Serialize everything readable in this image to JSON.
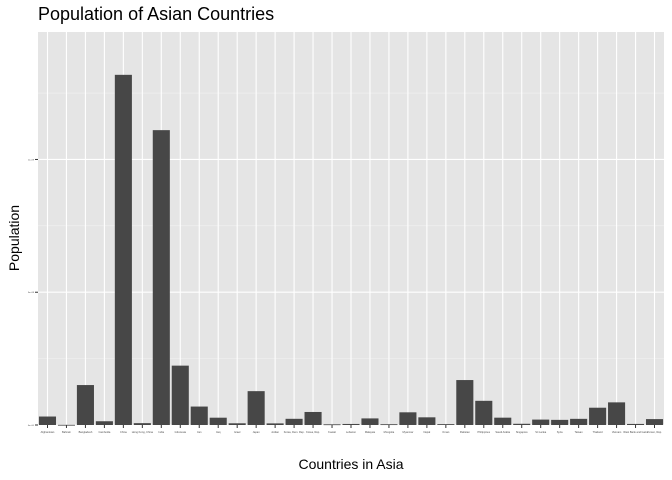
{
  "chart_data": {
    "type": "bar",
    "title": "Population of Asian Countries",
    "xlabel": "Countries in Asia",
    "ylabel": "Population",
    "ylim": [
      0,
      1480000000
    ],
    "y_ticks": [
      0,
      500000000,
      1000000000
    ],
    "grid": true,
    "background": "#e5e5e5",
    "bar_color": "#474747",
    "categories": [
      "Afghanistan",
      "Bahrain",
      "Bangladesh",
      "Cambodia",
      "China",
      "Hong Kong, China",
      "India",
      "Indonesia",
      "Iran",
      "Iraq",
      "Israel",
      "Japan",
      "Jordan",
      "Korea, Dem. Rep.",
      "Korea, Rep.",
      "Kuwait",
      "Lebanon",
      "Malaysia",
      "Mongolia",
      "Myanmar",
      "Nepal",
      "Oman",
      "Pakistan",
      "Philippines",
      "Saudi Arabia",
      "Singapore",
      "Sri Lanka",
      "Syria",
      "Taiwan",
      "Thailand",
      "Vietnam",
      "West Bank and Gaza",
      "Yemen, Rep."
    ],
    "values": [
      31889923,
      708573,
      150448339,
      14131858,
      1318683096,
      6980412,
      1110396331,
      223547000,
      69453570,
      27499638,
      6426679,
      127467972,
      6053193,
      23301725,
      49044790,
      2505559,
      3921278,
      24821286,
      2874127,
      47761980,
      28901790,
      3204897,
      169270617,
      91077287,
      27601038,
      4553009,
      20378239,
      19314747,
      23174294,
      65068149,
      85262356,
      4018332,
      22211743
    ]
  }
}
